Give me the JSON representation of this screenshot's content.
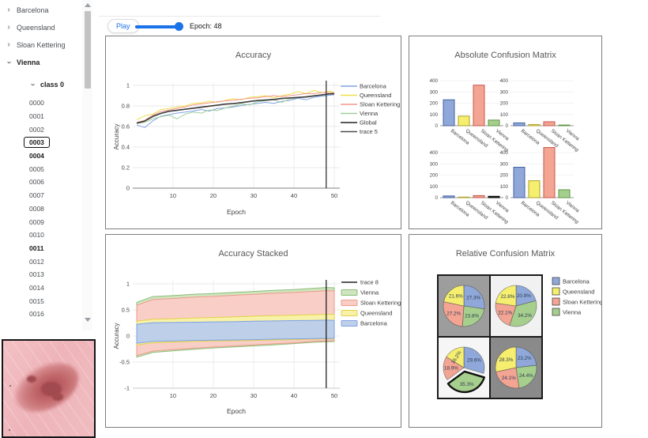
{
  "sidebar": {
    "groups": [
      {
        "label": "Barcelona",
        "expanded": false,
        "bold": false
      },
      {
        "label": "Queensland",
        "expanded": false,
        "bold": false
      },
      {
        "label": "Sloan Kettering",
        "expanded": false,
        "bold": false
      },
      {
        "label": "Vienna",
        "expanded": true,
        "bold": true
      }
    ],
    "class_node": {
      "label": "class 0",
      "expanded": true,
      "bold": true
    },
    "items": [
      {
        "label": "0000"
      },
      {
        "label": "0001"
      },
      {
        "label": "0002"
      },
      {
        "label": "0003",
        "selected": true,
        "bold": true
      },
      {
        "label": "0004",
        "bold": true
      },
      {
        "label": "0005"
      },
      {
        "label": "0006"
      },
      {
        "label": "0007"
      },
      {
        "label": "0008"
      },
      {
        "label": "0009"
      },
      {
        "label": "0010"
      },
      {
        "label": "0011",
        "bold": true
      },
      {
        "label": "0012"
      },
      {
        "label": "0013"
      },
      {
        "label": "0014"
      },
      {
        "label": "0015"
      },
      {
        "label": "0016"
      }
    ]
  },
  "player": {
    "play_label": "Play",
    "epoch_label": "Epoch: 48",
    "epoch": 48,
    "epoch_max": 50,
    "accent": "#1A73E8"
  },
  "chart_data": [
    {
      "id": "accuracy",
      "type": "line",
      "title": "Accuracy",
      "xlabel": "Epoch",
      "ylabel": "Accuracy",
      "xlim": [
        1,
        50
      ],
      "ylim": [
        0,
        1.05
      ],
      "yticks": [
        0,
        0.2,
        0.4,
        0.6,
        0.8,
        1
      ],
      "xticks": [
        10,
        20,
        30,
        40,
        50
      ],
      "epoch_marker": 48,
      "grid": true,
      "legend_position": "right",
      "x": [
        1,
        3,
        5,
        7,
        9,
        11,
        13,
        15,
        17,
        19,
        21,
        23,
        25,
        27,
        29,
        31,
        33,
        35,
        37,
        39,
        41,
        43,
        45,
        47,
        49,
        50
      ],
      "series": [
        {
          "name": "Barcelona",
          "color": "#7FA2E4",
          "values": [
            0.615,
            0.59,
            0.655,
            0.7,
            0.715,
            0.73,
            0.74,
            0.75,
            0.765,
            0.75,
            0.775,
            0.78,
            0.79,
            0.805,
            0.815,
            0.825,
            0.835,
            0.825,
            0.845,
            0.855,
            0.875,
            0.86,
            0.885,
            0.895,
            0.905,
            0.91
          ]
        },
        {
          "name": "Queensland",
          "color": "#EFDF4E",
          "values": [
            0.665,
            0.705,
            0.72,
            0.765,
            0.775,
            0.79,
            0.8,
            0.825,
            0.83,
            0.845,
            0.835,
            0.855,
            0.87,
            0.86,
            0.885,
            0.89,
            0.9,
            0.88,
            0.9,
            0.915,
            0.94,
            0.92,
            0.95,
            0.93,
            0.945,
            0.93
          ]
        },
        {
          "name": "Sloan Kettering",
          "color": "#F2968A",
          "values": [
            0.64,
            0.66,
            0.71,
            0.745,
            0.76,
            0.775,
            0.79,
            0.81,
            0.82,
            0.83,
            0.84,
            0.85,
            0.855,
            0.865,
            0.875,
            0.88,
            0.89,
            0.9,
            0.89,
            0.9,
            0.91,
            0.92,
            0.92,
            0.93,
            0.93,
            0.925
          ]
        },
        {
          "name": "Vienna",
          "color": "#9FCF9A",
          "values": [
            0.63,
            0.64,
            0.675,
            0.695,
            0.71,
            0.675,
            0.72,
            0.74,
            0.73,
            0.76,
            0.755,
            0.78,
            0.8,
            0.82,
            0.81,
            0.84,
            0.85,
            0.86,
            0.835,
            0.87,
            0.88,
            0.89,
            0.9,
            0.91,
            0.92,
            0.91
          ]
        },
        {
          "name": "Global",
          "color": "#222222",
          "values": [
            0.635,
            0.655,
            0.7,
            0.73,
            0.75,
            0.76,
            0.77,
            0.78,
            0.79,
            0.8,
            0.81,
            0.82,
            0.825,
            0.835,
            0.845,
            0.855,
            0.86,
            0.865,
            0.875,
            0.88,
            0.885,
            0.89,
            0.9,
            0.91,
            0.92,
            0.92
          ]
        },
        {
          "name": "trace 5",
          "color": "#4A4A4A",
          "values": [
            0.63,
            0.65,
            0.695,
            0.725,
            0.745,
            0.755,
            0.765,
            0.775,
            0.785,
            0.795,
            0.805,
            0.815,
            0.82,
            0.83,
            0.84,
            0.85,
            0.855,
            0.86,
            0.87,
            0.875,
            0.88,
            0.885,
            0.895,
            0.905,
            0.915,
            0.915
          ]
        }
      ]
    },
    {
      "id": "absolute_cm",
      "type": "bar",
      "title": "Absolute Confusion Matrix",
      "categories": [
        "Barcelona",
        "Queensland",
        "Sloan Kettering",
        "Vienna"
      ],
      "yticks": [
        0,
        100,
        200,
        300,
        400
      ],
      "ylim": [
        0,
        450
      ],
      "bar_fills": [
        "#8FA8D9",
        "#F5EE6E",
        "#F3A493",
        "#A6CF8D"
      ],
      "bar_borders": [
        "#44619E",
        "#ADA22B",
        "#C4584E",
        "#5E9446"
      ],
      "subplots": [
        {
          "values": [
            230,
            85,
            360,
            50
          ]
        },
        {
          "values": [
            25,
            10,
            35,
            6
          ]
        },
        {
          "values": [
            15,
            5,
            18,
            12
          ],
          "overrides": [
            null,
            null,
            null,
            {
              "fill": "#2F2F2F",
              "border": "#000000"
            }
          ]
        },
        {
          "values": [
            270,
            150,
            445,
            70
          ]
        }
      ]
    },
    {
      "id": "accuracy_stacked",
      "type": "area",
      "title": "Accuracy Stacked",
      "xlabel": "Epoch",
      "ylabel": "Accuracy",
      "xlim": [
        1,
        50
      ],
      "ylim": [
        -1,
        1
      ],
      "yticks": [
        1,
        0.5,
        0,
        -0.5,
        -1
      ],
      "xticks": [
        10,
        20,
        30,
        40,
        50
      ],
      "epoch_marker": 48,
      "legend": [
        {
          "name": "trace 8",
          "swatch": "line",
          "color": "#222222"
        },
        {
          "name": "Vienna",
          "swatch": "box",
          "fill": "#CFE5C0",
          "stroke": "#8CBD77"
        },
        {
          "name": "Sloan Kettering",
          "swatch": "box",
          "fill": "#F8CEC6",
          "stroke": "#EF9B8B"
        },
        {
          "name": "Queensland",
          "swatch": "box",
          "fill": "#F8F2A8",
          "stroke": "#E3D24B"
        },
        {
          "name": "Barcelona",
          "swatch": "box",
          "fill": "#BDCFE9",
          "stroke": "#7FA2E4"
        }
      ],
      "x": [
        1,
        5,
        10,
        15,
        20,
        25,
        30,
        35,
        40,
        45,
        48,
        50
      ],
      "bands": [
        {
          "name": "Vienna",
          "fill": "#CFE5C0",
          "stroke": "#8CBD77",
          "top": [
            0.645,
            0.755,
            0.775,
            0.8,
            0.815,
            0.835,
            0.855,
            0.875,
            0.89,
            0.915,
            0.93,
            0.925
          ],
          "bottom": [
            -0.405,
            -0.315,
            -0.285,
            -0.255,
            -0.23,
            -0.21,
            -0.19,
            -0.17,
            -0.145,
            -0.12,
            -0.11,
            -0.105
          ]
        },
        {
          "name": "Sloan Kettering",
          "fill": "#F8CEC6",
          "stroke": "#EF9B8B",
          "top": [
            0.59,
            0.7,
            0.72,
            0.745,
            0.76,
            0.78,
            0.8,
            0.82,
            0.835,
            0.855,
            0.87,
            0.865
          ],
          "bottom": [
            -0.375,
            -0.29,
            -0.26,
            -0.235,
            -0.21,
            -0.19,
            -0.17,
            -0.15,
            -0.13,
            -0.105,
            -0.095,
            -0.09
          ]
        },
        {
          "name": "Queensland",
          "fill": "#F8F2A8",
          "stroke": "#E3D24B",
          "top": [
            0.285,
            0.32,
            0.33,
            0.345,
            0.355,
            0.365,
            0.38,
            0.39,
            0.4,
            0.41,
            0.415,
            0.415
          ],
          "bottom": [
            -0.17,
            -0.13,
            -0.115,
            -0.105,
            -0.095,
            -0.09,
            -0.085,
            -0.075,
            -0.07,
            -0.06,
            -0.055,
            -0.055
          ]
        },
        {
          "name": "Barcelona",
          "fill": "#BDCFE9",
          "stroke": "#7FA2E4",
          "top": [
            0.225,
            0.255,
            0.26,
            0.265,
            0.27,
            0.275,
            0.285,
            0.29,
            0.295,
            0.3,
            0.305,
            0.3
          ],
          "bottom": [
            -0.14,
            -0.105,
            -0.095,
            -0.085,
            -0.08,
            -0.075,
            -0.07,
            -0.06,
            -0.055,
            -0.05,
            -0.045,
            -0.045
          ]
        }
      ]
    },
    {
      "id": "relative_cm",
      "type": "pie",
      "title": "Relative Confusion Matrix",
      "legend": [
        "Barcelona",
        "Queensland",
        "Sloan Kettering",
        "Vienna"
      ],
      "legend_fills": [
        "#8FA8D9",
        "#F5EE6E",
        "#F3A493",
        "#A6CF8D"
      ],
      "slice_order": [
        "Barcelona",
        "Vienna",
        "Sloan Kettering",
        "Queensland"
      ],
      "slice_fills": [
        "#8FA8D9",
        "#A6CF8D",
        "#F3A493",
        "#F5EE6E"
      ],
      "slice_borders": [
        "#44619E",
        "#5E9446",
        "#C4584E",
        "#ADA22B"
      ],
      "pies": [
        {
          "cell_bg": "#9D9D9D",
          "values": [
            27.3,
            23.8,
            27.2,
            21.6
          ],
          "labels": [
            "27.3%",
            "23.8%",
            "27.2%",
            "21.6%"
          ]
        },
        {
          "cell_bg": "#F1F1F1",
          "values": [
            20.9,
            34.2,
            22.1,
            22.8
          ],
          "labels": [
            "20.9%",
            "34.2%",
            "22.1%",
            "22.8%"
          ]
        },
        {
          "cell_bg": "#F6F6F6",
          "values": [
            29.6,
            35.3,
            18.9,
            16.2
          ],
          "labels": [
            "29.6%",
            "35.3%",
            "18.9%",
            "16.2%"
          ],
          "exploded_index": 1,
          "rotated_label_index": 3
        },
        {
          "cell_bg": "#8A8A8A",
          "values": [
            23.2,
            24.4,
            24.1,
            28.3
          ],
          "labels": [
            "23.2%",
            "24.4%",
            "24.1%",
            "28.3%"
          ]
        }
      ]
    }
  ]
}
